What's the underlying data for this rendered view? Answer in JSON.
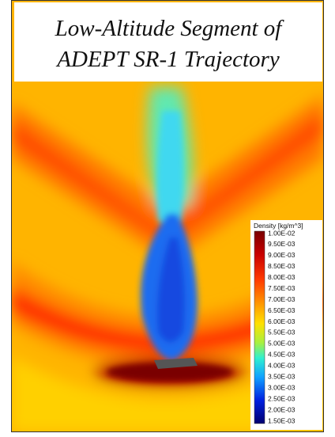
{
  "title": [
    "Low-Altitude Segment of",
    "ADEPT SR-1 Trajectory"
  ],
  "colorbar": {
    "title": "Density [kg/m^3]",
    "labels": [
      "1.00E-02",
      "9.50E-03",
      "9.00E-03",
      "8.50E-03",
      "8.00E-03",
      "7.50E-03",
      "7.00E-03",
      "6.50E-03",
      "6.00E-03",
      "5.50E-03",
      "5.00E-03",
      "4.50E-03",
      "4.00E-03",
      "3.50E-03",
      "3.00E-03",
      "2.50E-03",
      "2.00E-03",
      "1.50E-03"
    ]
  }
}
